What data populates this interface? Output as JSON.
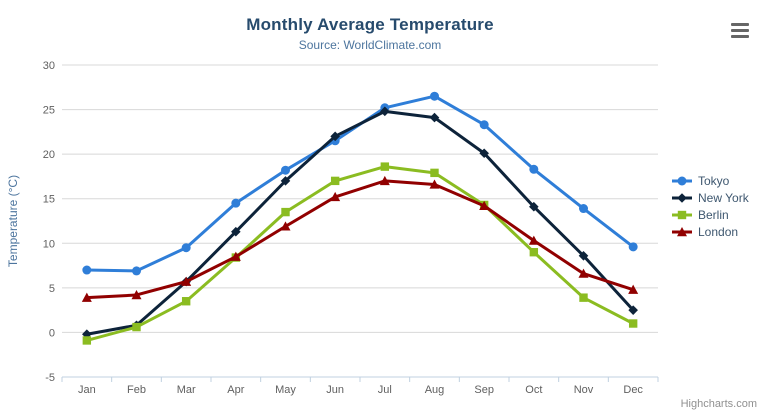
{
  "chart_data": {
    "type": "line",
    "title": "Monthly Average Temperature",
    "subtitle": "Source: WorldClimate.com",
    "xlabel": "",
    "ylabel": "Temperature (°C)",
    "ylim": [
      -5,
      30
    ],
    "ytick_step": 5,
    "grid": true,
    "legend_position": "right",
    "categories": [
      "Jan",
      "Feb",
      "Mar",
      "Apr",
      "May",
      "Jun",
      "Jul",
      "Aug",
      "Sep",
      "Oct",
      "Nov",
      "Dec"
    ],
    "series": [
      {
        "name": "Tokyo",
        "color": "#2f7ed8",
        "marker": "circle",
        "values": [
          7.0,
          6.9,
          9.5,
          14.5,
          18.2,
          21.5,
          25.2,
          26.5,
          23.3,
          18.3,
          13.9,
          9.6
        ]
      },
      {
        "name": "New York",
        "color": "#0d233a",
        "marker": "diamond",
        "values": [
          -0.2,
          0.8,
          5.7,
          11.3,
          17.0,
          22.0,
          24.8,
          24.1,
          20.1,
          14.1,
          8.6,
          2.5
        ]
      },
      {
        "name": "Berlin",
        "color": "#8bbc21",
        "marker": "square",
        "values": [
          -0.9,
          0.6,
          3.5,
          8.4,
          13.5,
          17.0,
          18.6,
          17.9,
          14.3,
          9.0,
          3.9,
          1.0
        ]
      },
      {
        "name": "London",
        "color": "#910000",
        "marker": "triangle",
        "values": [
          3.9,
          4.2,
          5.7,
          8.5,
          11.9,
          15.2,
          17.0,
          16.6,
          14.2,
          10.3,
          6.6,
          4.8
        ]
      }
    ]
  },
  "colors": {
    "grid_line": "#d8d8d8",
    "axis_line": "#c0d0e0",
    "tick_label": "#606060",
    "title_text": "#274b6d",
    "subtitle_text": "#4d759e",
    "legend_text": "#3e576f"
  },
  "icons": {
    "context_menu": "hamburger-icon"
  },
  "credits": "Highcharts.com"
}
